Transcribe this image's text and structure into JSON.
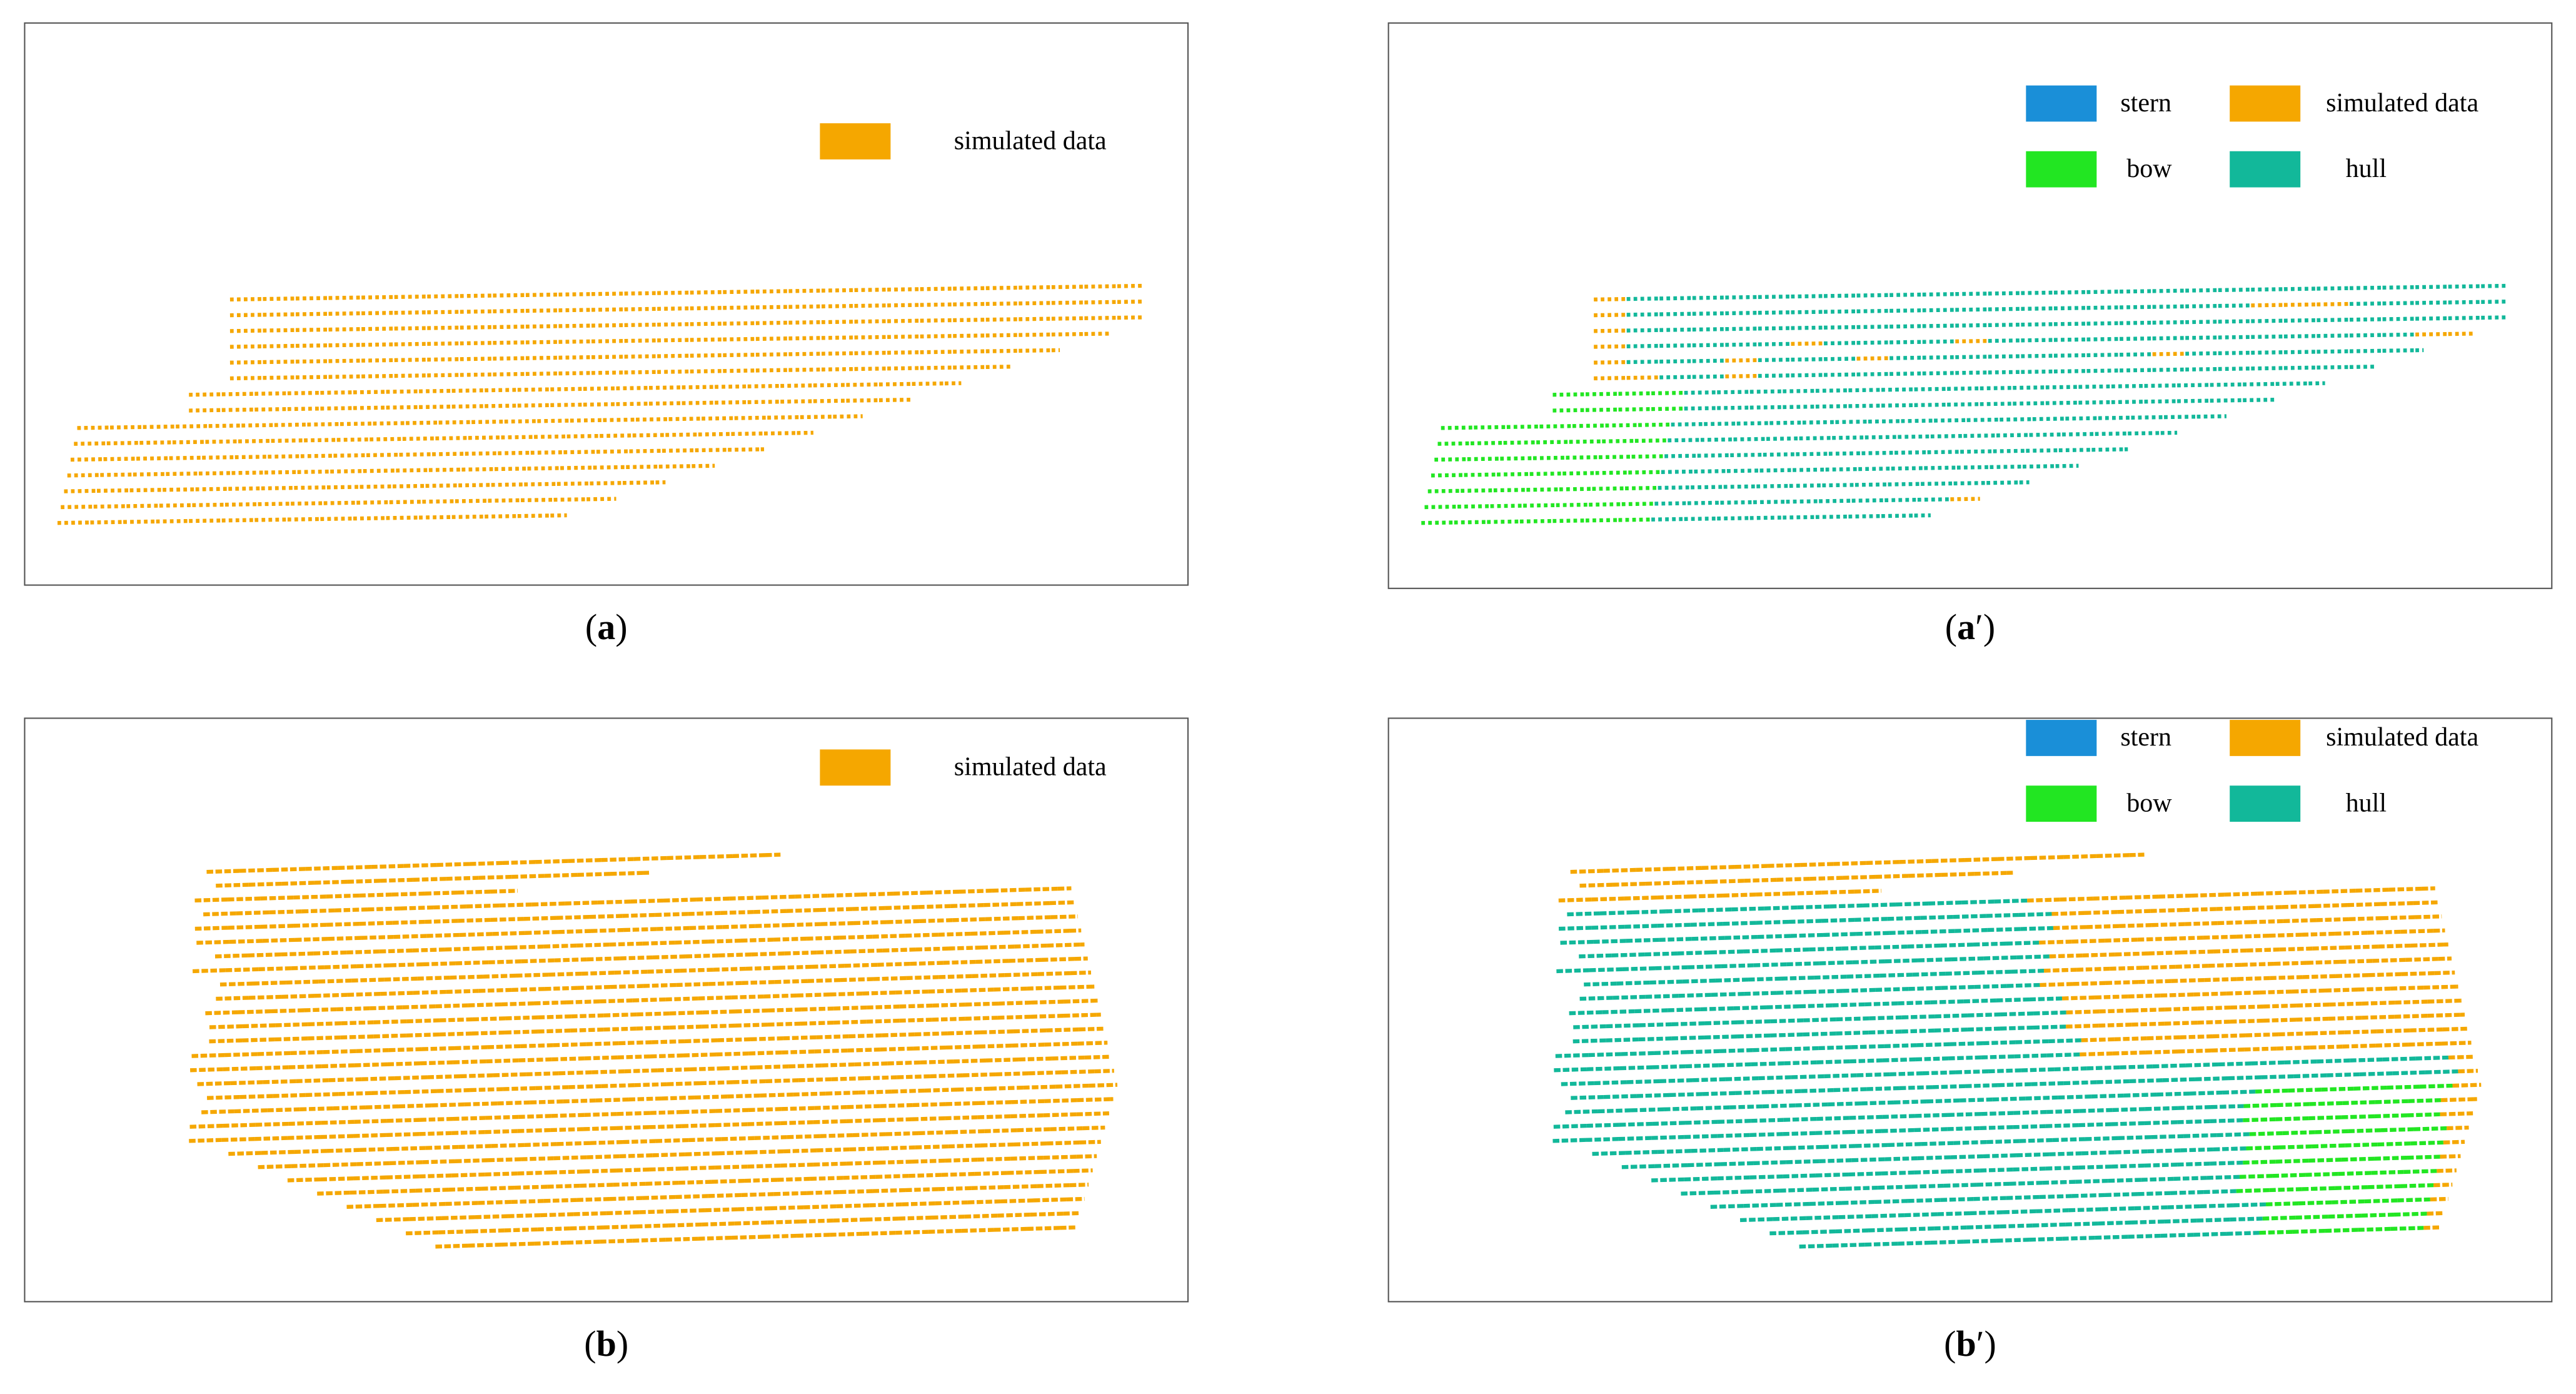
{
  "panels": [
    {
      "caption": {
        "open": "(",
        "letter": "a",
        "close": ")"
      },
      "legend": [
        {
          "label": "simulated data",
          "color": "#f5a700"
        }
      ]
    },
    {
      "caption": {
        "open": "(",
        "letter": "a",
        "close": "′)"
      },
      "legend": [
        {
          "label": "stern",
          "color": "#1a8fd8"
        },
        {
          "label": "simulated data",
          "color": "#f5a700"
        },
        {
          "label": "bow",
          "color": "#22e622"
        },
        {
          "label": "hull",
          "color": "#12b89a"
        }
      ]
    },
    {
      "caption": {
        "open": "(",
        "letter": "b",
        "close": ")"
      },
      "legend": [
        {
          "label": "simulated data",
          "color": "#f5a700"
        }
      ]
    },
    {
      "caption": {
        "open": "(",
        "letter": "b",
        "close": "′)"
      },
      "legend": [
        {
          "label": "stern",
          "color": "#1a8fd8"
        },
        {
          "label": "simulated data",
          "color": "#f5a700"
        },
        {
          "label": "bow",
          "color": "#22e622"
        },
        {
          "label": "hull",
          "color": "#12b89a"
        }
      ]
    }
  ]
}
